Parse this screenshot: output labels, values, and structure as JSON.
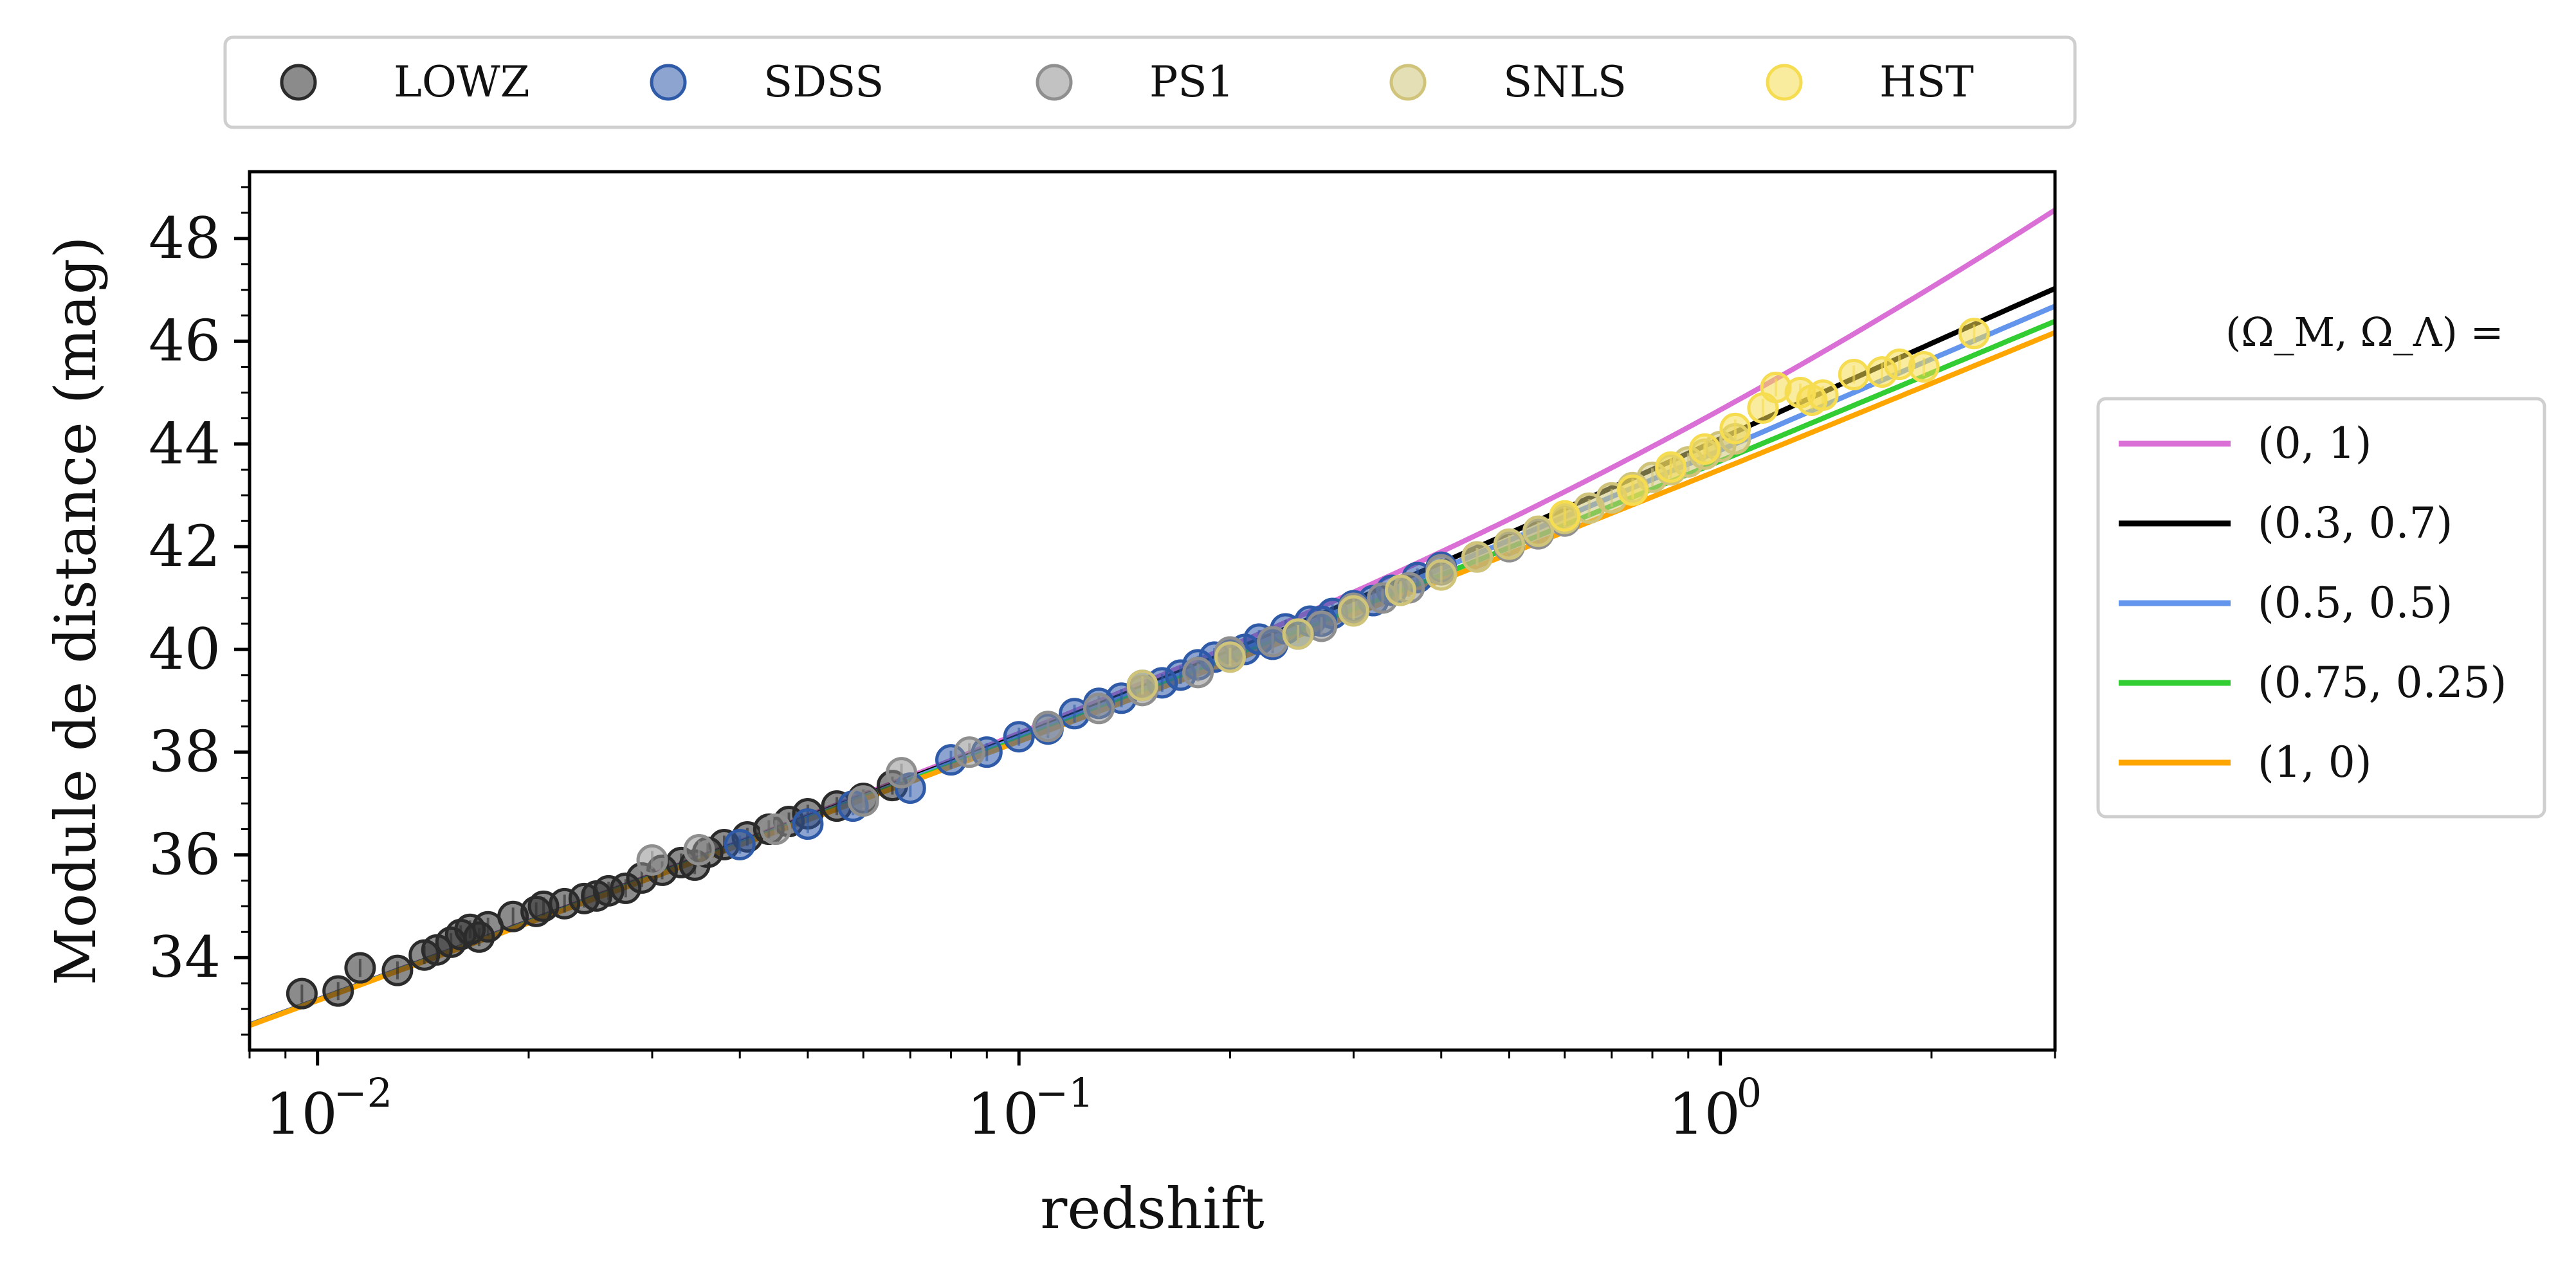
{
  "chart_data": {
    "type": "scatter",
    "title": "",
    "xlabel": "redshift",
    "ylabel": "Module de distance (mag)",
    "x_scale": "log",
    "xlim": [
      0.008,
      3.0
    ],
    "ylim": [
      32.2,
      49.3
    ],
    "x_ticks": [
      {
        "value": 0.01,
        "base": "10",
        "exp": "−2"
      },
      {
        "value": 0.1,
        "base": "10",
        "exp": "−1"
      },
      {
        "value": 1.0,
        "base": "10",
        "exp": "0"
      }
    ],
    "y_ticks": [
      34,
      36,
      38,
      40,
      42,
      44,
      46,
      48
    ],
    "data_legend": {
      "position": "top, above plot",
      "entries": [
        "LOWZ",
        "SDSS",
        "PS1",
        "SNLS",
        "HST"
      ]
    },
    "model_legend": {
      "position": "right, outside plot",
      "title": "(Ω_M, Ω_Λ) =",
      "entries": [
        "(0, 1)",
        "(0.3, 0.7)",
        "(0.5, 0.5)",
        "(0.75, 0.25)",
        "(1, 0)"
      ]
    },
    "scatter_series": [
      {
        "name": "LOWZ",
        "color": "#2b2b2b",
        "points": [
          [
            0.0095,
            33.3
          ],
          [
            0.0107,
            33.35
          ],
          [
            0.0115,
            33.8
          ],
          [
            0.013,
            33.75
          ],
          [
            0.0142,
            34.05
          ],
          [
            0.0148,
            34.15
          ],
          [
            0.0155,
            34.3
          ],
          [
            0.016,
            34.45
          ],
          [
            0.0165,
            34.55
          ],
          [
            0.017,
            34.4
          ],
          [
            0.0175,
            34.6
          ],
          [
            0.019,
            34.8
          ],
          [
            0.0205,
            34.9
          ],
          [
            0.021,
            35.0
          ],
          [
            0.0225,
            35.05
          ],
          [
            0.024,
            35.15
          ],
          [
            0.025,
            35.2
          ],
          [
            0.026,
            35.3
          ],
          [
            0.0275,
            35.35
          ],
          [
            0.029,
            35.55
          ],
          [
            0.031,
            35.7
          ],
          [
            0.033,
            35.85
          ],
          [
            0.0345,
            35.8
          ],
          [
            0.036,
            36.05
          ],
          [
            0.038,
            36.2
          ],
          [
            0.041,
            36.35
          ],
          [
            0.044,
            36.5
          ],
          [
            0.047,
            36.65
          ],
          [
            0.05,
            36.8
          ],
          [
            0.055,
            36.95
          ],
          [
            0.06,
            37.1
          ],
          [
            0.066,
            37.35
          ]
        ]
      },
      {
        "name": "SDSS",
        "color": "#2e5aa8",
        "points": [
          [
            0.04,
            36.2
          ],
          [
            0.05,
            36.6
          ],
          [
            0.058,
            36.95
          ],
          [
            0.07,
            37.3
          ],
          [
            0.08,
            37.85
          ],
          [
            0.09,
            38.0
          ],
          [
            0.1,
            38.3
          ],
          [
            0.11,
            38.45
          ],
          [
            0.12,
            38.75
          ],
          [
            0.13,
            38.95
          ],
          [
            0.14,
            39.05
          ],
          [
            0.15,
            39.3
          ],
          [
            0.16,
            39.35
          ],
          [
            0.17,
            39.5
          ],
          [
            0.18,
            39.7
          ],
          [
            0.19,
            39.85
          ],
          [
            0.2,
            39.9
          ],
          [
            0.21,
            40.0
          ],
          [
            0.22,
            40.2
          ],
          [
            0.23,
            40.1
          ],
          [
            0.24,
            40.4
          ],
          [
            0.25,
            40.3
          ],
          [
            0.26,
            40.55
          ],
          [
            0.27,
            40.55
          ],
          [
            0.28,
            40.7
          ],
          [
            0.3,
            40.85
          ],
          [
            0.32,
            40.95
          ],
          [
            0.34,
            41.15
          ],
          [
            0.37,
            41.4
          ],
          [
            0.4,
            41.6
          ]
        ]
      },
      {
        "name": "PS1",
        "color": "#8f8f8f",
        "points": [
          [
            0.03,
            35.9
          ],
          [
            0.035,
            36.1
          ],
          [
            0.045,
            36.5
          ],
          [
            0.06,
            37.05
          ],
          [
            0.068,
            37.6
          ],
          [
            0.085,
            38.0
          ],
          [
            0.11,
            38.5
          ],
          [
            0.13,
            38.85
          ],
          [
            0.15,
            39.2
          ],
          [
            0.18,
            39.55
          ],
          [
            0.2,
            39.95
          ],
          [
            0.23,
            40.15
          ],
          [
            0.27,
            40.45
          ],
          [
            0.3,
            40.8
          ],
          [
            0.33,
            41.0
          ],
          [
            0.36,
            41.2
          ],
          [
            0.4,
            41.55
          ],
          [
            0.45,
            41.8
          ],
          [
            0.5,
            42.0
          ],
          [
            0.55,
            42.25
          ],
          [
            0.6,
            42.5
          ]
        ]
      },
      {
        "name": "SNLS",
        "color": "#cfc47a",
        "points": [
          [
            0.15,
            39.3
          ],
          [
            0.2,
            39.85
          ],
          [
            0.25,
            40.3
          ],
          [
            0.3,
            40.75
          ],
          [
            0.35,
            41.15
          ],
          [
            0.4,
            41.45
          ],
          [
            0.45,
            41.8
          ],
          [
            0.5,
            42.05
          ],
          [
            0.55,
            42.3
          ],
          [
            0.6,
            42.55
          ],
          [
            0.65,
            42.75
          ],
          [
            0.7,
            42.95
          ],
          [
            0.75,
            43.15
          ],
          [
            0.8,
            43.35
          ],
          [
            0.85,
            43.5
          ],
          [
            0.9,
            43.65
          ],
          [
            0.95,
            43.8
          ],
          [
            1.0,
            43.95
          ],
          [
            1.05,
            44.1
          ]
        ]
      },
      {
        "name": "HST",
        "color": "#f5dc50",
        "points": [
          [
            0.6,
            42.6
          ],
          [
            0.75,
            43.1
          ],
          [
            0.85,
            43.55
          ],
          [
            0.95,
            43.9
          ],
          [
            1.05,
            44.3
          ],
          [
            1.15,
            44.7
          ],
          [
            1.2,
            45.1
          ],
          [
            1.3,
            45.0
          ],
          [
            1.35,
            44.85
          ],
          [
            1.4,
            44.95
          ],
          [
            1.55,
            45.35
          ],
          [
            1.7,
            45.4
          ],
          [
            1.8,
            45.55
          ],
          [
            1.95,
            45.5
          ],
          [
            2.3,
            46.15
          ]
        ]
      }
    ],
    "model_series": [
      {
        "name": "(0, 1)",
        "color": "#da70d6",
        "om": 0.0,
        "ol": 1.0
      },
      {
        "name": "(0.3, 0.7)",
        "color": "#000000",
        "om": 0.3,
        "ol": 0.7
      },
      {
        "name": "(0.5, 0.5)",
        "color": "#6495ed",
        "om": 0.5,
        "ol": 0.5
      },
      {
        "name": "(0.75, 0.25)",
        "color": "#32cd32",
        "om": 0.75,
        "ol": 0.25
      },
      {
        "name": "(1, 0)",
        "color": "#ffa500",
        "om": 1.0,
        "ol": 0.0
      }
    ],
    "grid": false
  }
}
